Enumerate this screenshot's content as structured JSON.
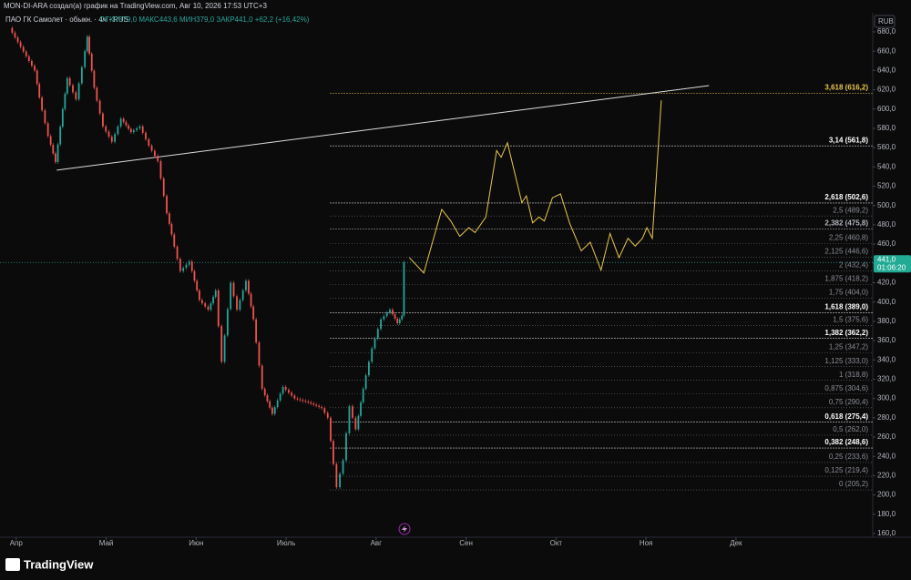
{
  "header": {
    "author_line": "MON-DI-ARA создал(а) график на TradingView.com, Авг 10, 2026 17:53 UTC+3",
    "symbol": "ПАО ГК Самолет · обыкн. · 4ч · RUS",
    "ohlc": "ОТКР379,0 МАКС443,6 МИН379,0 ЗАКР441,0 +62,2 (+16,42%)",
    "currency": "RUB"
  },
  "footer": {
    "brand": "TradingView"
  },
  "chart_data": {
    "type": "candlestick",
    "xlim": [
      -0.18,
      9.52
    ],
    "xticks": [
      {
        "value": 0,
        "label": "Апр"
      },
      {
        "value": 1,
        "label": "Май"
      },
      {
        "value": 2,
        "label": "Июн"
      },
      {
        "value": 3,
        "label": "Июль"
      },
      {
        "value": 4,
        "label": "Авг"
      },
      {
        "value": 5,
        "label": "Сен"
      },
      {
        "value": 6,
        "label": "Окт"
      },
      {
        "value": 7,
        "label": "Ноя"
      },
      {
        "value": 8,
        "label": "Дек"
      }
    ],
    "ylim": [
      156.2,
      699.8
    ],
    "yticks": [
      {
        "value": 160,
        "label": "160,0"
      },
      {
        "value": 180,
        "label": "180,0"
      },
      {
        "value": 200,
        "label": "200,0"
      },
      {
        "value": 220,
        "label": "220,0"
      },
      {
        "value": 240,
        "label": "240,0"
      },
      {
        "value": 260,
        "label": "260,0"
      },
      {
        "value": 280,
        "label": "280,0"
      },
      {
        "value": 300,
        "label": "300,0"
      },
      {
        "value": 320,
        "label": "320,0"
      },
      {
        "value": 340,
        "label": "340,0"
      },
      {
        "value": 360,
        "label": "360,0"
      },
      {
        "value": 380,
        "label": "380,0"
      },
      {
        "value": 400,
        "label": "400,0"
      },
      {
        "value": 420,
        "label": "420,0"
      },
      {
        "value": 440,
        "label": "440,0"
      },
      {
        "value": 460,
        "label": "460,0"
      },
      {
        "value": 480,
        "label": "480,0"
      },
      {
        "value": 500,
        "label": "500,0"
      },
      {
        "value": 520,
        "label": "520,0"
      },
      {
        "value": 540,
        "label": "540,0"
      },
      {
        "value": 560,
        "label": "560,0"
      },
      {
        "value": 580,
        "label": "580,0"
      },
      {
        "value": 600,
        "label": "600,0"
      },
      {
        "value": 620,
        "label": "620,0"
      },
      {
        "value": 640,
        "label": "640,0"
      },
      {
        "value": 660,
        "label": "660,0"
      },
      {
        "value": 680,
        "label": "680,0"
      }
    ],
    "price": {
      "up_color": "#26a69a",
      "down_color": "#ef5350",
      "x": [
        -0.06,
        0.22,
        0.27,
        0.37,
        0.45,
        0.53,
        0.58,
        0.68,
        0.78,
        0.8,
        0.88,
        0.98,
        1.08,
        1.18,
        1.29,
        1.39,
        1.49,
        1.59,
        1.69,
        1.74,
        1.84,
        1.94,
        2.05,
        2.15,
        2.23,
        2.3,
        2.4,
        2.47,
        2.57,
        2.65,
        2.75,
        2.86,
        2.98,
        3.11,
        3.26,
        3.41,
        3.48,
        3.54,
        3.58,
        3.65,
        3.72,
        3.79,
        3.87,
        3.97,
        4.07,
        4.17,
        4.25,
        4.3,
        4.32
      ],
      "values": [
        684,
        640,
        612,
        572,
        545,
        600,
        632,
        610,
        660,
        675,
        622,
        582,
        566,
        590,
        576,
        582,
        562,
        546,
        492,
        470,
        432,
        442,
        402,
        392,
        412,
        338,
        420,
        392,
        422,
        382,
        310,
        284,
        312,
        300,
        296,
        290,
        280,
        232,
        208,
        236,
        292,
        268,
        310,
        352,
        382,
        392,
        378,
        386,
        441
      ]
    },
    "projection": {
      "color": "#e8c84a",
      "x": [
        4.37,
        4.46,
        4.53,
        4.73,
        4.83,
        4.93,
        5.03,
        5.1,
        5.22,
        5.34,
        5.39,
        5.46,
        5.62,
        5.67,
        5.74,
        5.81,
        5.87,
        5.96,
        6.05,
        6.15,
        6.28,
        6.38,
        6.5,
        6.6,
        6.7,
        6.8,
        6.88,
        6.96,
        7.01,
        7.07,
        7.17
      ],
      "values": [
        446,
        437,
        430,
        496,
        484,
        468,
        477,
        472,
        488,
        557,
        550,
        565,
        503,
        510,
        482,
        488,
        484,
        508,
        512,
        482,
        453,
        462,
        433,
        471,
        446,
        466,
        458,
        466,
        477,
        466,
        609
      ]
    },
    "trendline": {
      "color": "#dddddd",
      "x": [
        0.45,
        7.7
      ],
      "values": [
        536.6,
        624.3
      ]
    },
    "last_price": {
      "value": 441.0,
      "label": "441,0",
      "countdown": "01:06:20",
      "color": "#22ab94"
    },
    "fib_levels": [
      {
        "value": 616.2,
        "label": "3,618 (616,2)",
        "color": "#e8c84a"
      },
      {
        "value": 561.8,
        "label": "3,14 (561,8)",
        "color": "#ffffff"
      },
      {
        "value": 502.6,
        "label": "2,618 (502,6)",
        "color": "#ffffff"
      },
      {
        "value": 489.2,
        "label": "2,5 (489,2)",
        "color": "#8a8d96"
      },
      {
        "value": 475.8,
        "label": "2,382 (475,8)",
        "color": "#b2b5be"
      },
      {
        "value": 460.8,
        "label": "2,25 (460,8)",
        "color": "#8a8d96"
      },
      {
        "value": 446.6,
        "label": "2,125 (446,6)",
        "color": "#8a8d96"
      },
      {
        "value": 432.4,
        "label": "2 (432,4)",
        "color": "#8a8d96"
      },
      {
        "value": 418.2,
        "label": "1,875 (418,2)",
        "color": "#8a8d96"
      },
      {
        "value": 404.0,
        "label": "1,75 (404,0)",
        "color": "#8a8d96"
      },
      {
        "value": 389.0,
        "label": "1,618 (389,0)",
        "color": "#ffffff"
      },
      {
        "value": 375.6,
        "label": "1,5 (375,6)",
        "color": "#8a8d96"
      },
      {
        "value": 362.2,
        "label": "1,382 (362,2)",
        "color": "#ffffff"
      },
      {
        "value": 347.2,
        "label": "1,25 (347,2)",
        "color": "#8a8d96"
      },
      {
        "value": 333.0,
        "label": "1,125 (333,0)",
        "color": "#8a8d96"
      },
      {
        "value": 318.8,
        "label": "1 (318,8)",
        "color": "#8a8d96"
      },
      {
        "value": 304.6,
        "label": "0,875 (304,6)",
        "color": "#8a8d96"
      },
      {
        "value": 290.4,
        "label": "0,75 (290,4)",
        "color": "#8a8d96"
      },
      {
        "value": 275.4,
        "label": "0,618 (275,4)",
        "color": "#ffffff"
      },
      {
        "value": 262.0,
        "label": "0,5 (262,0)",
        "color": "#8a8d96"
      },
      {
        "value": 248.6,
        "label": "0,382 (248,6)",
        "color": "#ffffff"
      },
      {
        "value": 233.6,
        "label": "0,25 (233,6)",
        "color": "#8a8d96"
      },
      {
        "value": 219.4,
        "label": "0,125 (219,4)",
        "color": "#8a8d96"
      },
      {
        "value": 205.2,
        "label": "0 (205,2)",
        "color": "#8a8d96"
      }
    ]
  }
}
